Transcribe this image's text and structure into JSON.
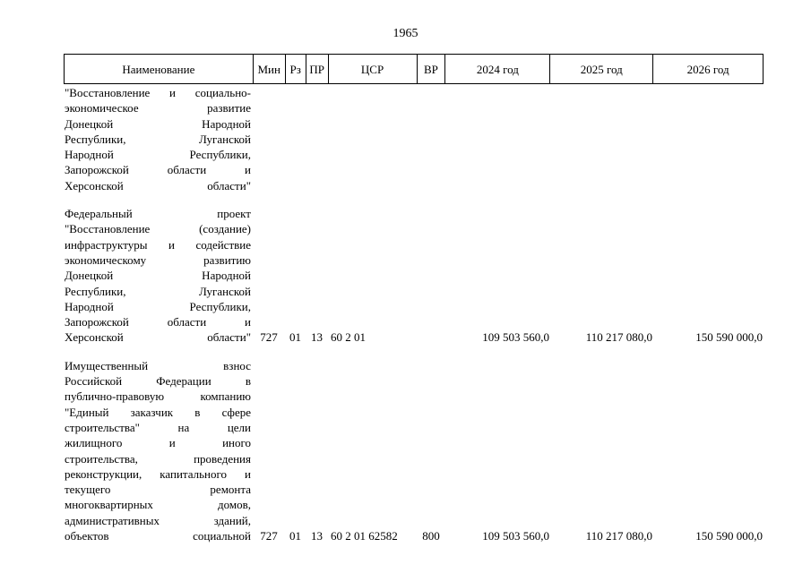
{
  "page_number": "1965",
  "headers": {
    "name": "Наименование",
    "min": "Мин",
    "rz": "Рз",
    "pr": "ПР",
    "csr": "ЦСР",
    "vr": "ВР",
    "y2024": "2024 год",
    "y2025": "2025 год",
    "y2026": "2026 год"
  },
  "rows": [
    {
      "name_lines": [
        "\"Восстановление и социально-",
        "экономическое развитие",
        "Донецкой Народной",
        "Республики, Луганской",
        "Народной Республики,",
        "Запорожской области и",
        "Херсонской области\""
      ],
      "min": "",
      "rz": "",
      "pr": "",
      "csr": "",
      "vr": "",
      "y2024": "",
      "y2025": "",
      "y2026": ""
    },
    {
      "name_lines": [
        "Федеральный проект",
        "\"Восстановление (создание)",
        "инфраструктуры и содействие",
        "экономическому развитию",
        "Донецкой Народной",
        "Республики, Луганской",
        "Народной Республики,",
        "Запорожской области и",
        "Херсонской области\""
      ],
      "min": "727",
      "rz": "01",
      "pr": "13",
      "csr": "60 2 01",
      "vr": "",
      "y2024": "109 503 560,0",
      "y2025": "110 217 080,0",
      "y2026": "150 590 000,0"
    },
    {
      "name_lines": [
        "Имущественный взнос",
        "Российской Федерации в",
        "публично-правовую компанию",
        "\"Единый заказчик в сфере",
        "строительства\" на цели",
        "жилищного и иного",
        "строительства, проведения",
        "реконструкции, капитального и",
        "текущего ремонта",
        "многоквартирных домов,",
        "административных зданий,",
        "объектов социальной"
      ],
      "min": "727",
      "rz": "01",
      "pr": "13",
      "csr": "60 2 01 62582",
      "vr": "800",
      "y2024": "109 503 560,0",
      "y2025": "110 217 080,0",
      "y2026": "150 590 000,0"
    }
  ]
}
